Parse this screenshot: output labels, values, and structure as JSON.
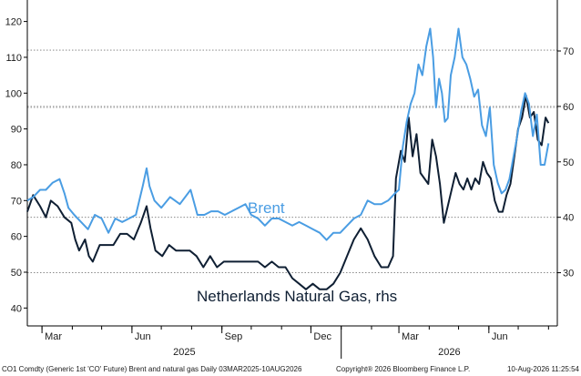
{
  "chart_data": {
    "type": "line",
    "title": "",
    "colors": {
      "brent": "#4a9de3",
      "gas": "#0f1f33",
      "grid": "#7a7a7a",
      "axis": "#000000"
    },
    "x_ticks": [
      "Mar",
      "Jun",
      "Sep",
      "Dec",
      "Mar",
      "Jun"
    ],
    "x_tick_dates": [
      "2025-03-01",
      "2025-06-01",
      "2025-09-01",
      "2025-12-01",
      "2026-03-01",
      "2026-06-01"
    ],
    "years": [
      "2025",
      "2026"
    ],
    "x_range": [
      "2025-02-14",
      "2026-08-10"
    ],
    "y_left": {
      "ticks": [
        40,
        50,
        60,
        70,
        80,
        90,
        100,
        110,
        120
      ],
      "range": [
        35,
        126
      ]
    },
    "y_right": {
      "ticks": [
        30,
        40,
        50,
        60,
        70
      ],
      "range": [
        20.4,
        79.2
      ]
    },
    "grid": [
      {
        "axis": "left",
        "value": 112
      },
      {
        "axis": "left",
        "value": 96
      },
      {
        "axis": "right",
        "value": 60
      },
      {
        "axis": "right",
        "value": 40
      },
      {
        "axis": "right",
        "value": 30
      }
    ],
    "series": [
      {
        "name": "Brent",
        "axis": "left",
        "points": [
          [
            "2025-02-14",
            70
          ],
          [
            "2025-02-20",
            71
          ],
          [
            "2025-02-27",
            73
          ],
          [
            "2025-03-05",
            73
          ],
          [
            "2025-03-12",
            75
          ],
          [
            "2025-03-19",
            76
          ],
          [
            "2025-03-24",
            72
          ],
          [
            "2025-03-28",
            68
          ],
          [
            "2025-04-03",
            66
          ],
          [
            "2025-04-10",
            64
          ],
          [
            "2025-04-17",
            62
          ],
          [
            "2025-04-24",
            66
          ],
          [
            "2025-05-01",
            65
          ],
          [
            "2025-05-08",
            61
          ],
          [
            "2025-05-15",
            65
          ],
          [
            "2025-05-22",
            64
          ],
          [
            "2025-05-29",
            65
          ],
          [
            "2025-06-05",
            66
          ],
          [
            "2025-06-12",
            74
          ],
          [
            "2025-06-16",
            79
          ],
          [
            "2025-06-19",
            74
          ],
          [
            "2025-06-24",
            70
          ],
          [
            "2025-07-01",
            68
          ],
          [
            "2025-07-10",
            71
          ],
          [
            "2025-07-20",
            69
          ],
          [
            "2025-07-31",
            73
          ],
          [
            "2025-08-07",
            66
          ],
          [
            "2025-08-14",
            66
          ],
          [
            "2025-08-21",
            67
          ],
          [
            "2025-08-28",
            67
          ],
          [
            "2025-09-04",
            66
          ],
          [
            "2025-09-11",
            67
          ],
          [
            "2025-09-18",
            68
          ],
          [
            "2025-09-25",
            69
          ],
          [
            "2025-10-01",
            66
          ],
          [
            "2025-10-08",
            65
          ],
          [
            "2025-10-15",
            63
          ],
          [
            "2025-10-22",
            65
          ],
          [
            "2025-10-29",
            65
          ],
          [
            "2025-11-05",
            64
          ],
          [
            "2025-11-12",
            63
          ],
          [
            "2025-11-19",
            64
          ],
          [
            "2025-11-26",
            63
          ],
          [
            "2025-12-03",
            62
          ],
          [
            "2025-12-10",
            61
          ],
          [
            "2025-12-17",
            59
          ],
          [
            "2025-12-24",
            61
          ],
          [
            "2025-12-31",
            61
          ],
          [
            "2026-01-07",
            63
          ],
          [
            "2026-01-14",
            65
          ],
          [
            "2026-01-21",
            66
          ],
          [
            "2026-01-28",
            70
          ],
          [
            "2026-02-04",
            69
          ],
          [
            "2026-02-11",
            69
          ],
          [
            "2026-02-18",
            70
          ],
          [
            "2026-02-25",
            72
          ],
          [
            "2026-03-01",
            73
          ],
          [
            "2026-03-05",
            85
          ],
          [
            "2026-03-09",
            92
          ],
          [
            "2026-03-13",
            97
          ],
          [
            "2026-03-17",
            100
          ],
          [
            "2026-03-21",
            108
          ],
          [
            "2026-03-25",
            105
          ],
          [
            "2026-03-29",
            113
          ],
          [
            "2026-04-02",
            118
          ],
          [
            "2026-04-05",
            110
          ],
          [
            "2026-04-08",
            96
          ],
          [
            "2026-04-11",
            104
          ],
          [
            "2026-04-14",
            100
          ],
          [
            "2026-04-17",
            92
          ],
          [
            "2026-04-20",
            93
          ],
          [
            "2026-04-23",
            105
          ],
          [
            "2026-04-27",
            110
          ],
          [
            "2026-05-01",
            118
          ],
          [
            "2026-05-05",
            110
          ],
          [
            "2026-05-09",
            108
          ],
          [
            "2026-05-13",
            104
          ],
          [
            "2026-05-17",
            99
          ],
          [
            "2026-05-21",
            101
          ],
          [
            "2026-05-25",
            91
          ],
          [
            "2026-05-29",
            88
          ],
          [
            "2026-06-02",
            96
          ],
          [
            "2026-06-06",
            80
          ],
          [
            "2026-06-10",
            75
          ],
          [
            "2026-06-14",
            72
          ],
          [
            "2026-06-18",
            73
          ],
          [
            "2026-06-22",
            76
          ],
          [
            "2026-06-26",
            82
          ],
          [
            "2026-06-30",
            88
          ],
          [
            "2026-07-04",
            95
          ],
          [
            "2026-07-08",
            100
          ],
          [
            "2026-07-12",
            97
          ],
          [
            "2026-07-16",
            88
          ],
          [
            "2026-07-20",
            94
          ],
          [
            "2026-07-24",
            80
          ],
          [
            "2026-07-28",
            80
          ],
          [
            "2026-08-01",
            86
          ]
        ]
      },
      {
        "name": "Netherlands Natural Gas, rhs",
        "axis": "right",
        "points": [
          [
            "2025-02-14",
            41
          ],
          [
            "2025-02-20",
            44
          ],
          [
            "2025-02-27",
            42
          ],
          [
            "2025-03-05",
            40
          ],
          [
            "2025-03-10",
            43
          ],
          [
            "2025-03-17",
            42
          ],
          [
            "2025-03-24",
            40
          ],
          [
            "2025-03-31",
            39
          ],
          [
            "2025-04-04",
            36
          ],
          [
            "2025-04-08",
            34
          ],
          [
            "2025-04-14",
            36
          ],
          [
            "2025-04-18",
            33
          ],
          [
            "2025-04-22",
            32
          ],
          [
            "2025-04-29",
            35
          ],
          [
            "2025-05-06",
            35
          ],
          [
            "2025-05-13",
            35
          ],
          [
            "2025-05-20",
            37
          ],
          [
            "2025-05-27",
            37
          ],
          [
            "2025-06-03",
            36
          ],
          [
            "2025-06-10",
            39
          ],
          [
            "2025-06-16",
            42
          ],
          [
            "2025-06-20",
            38
          ],
          [
            "2025-06-25",
            34
          ],
          [
            "2025-07-02",
            33
          ],
          [
            "2025-07-09",
            35
          ],
          [
            "2025-07-16",
            34
          ],
          [
            "2025-07-23",
            34
          ],
          [
            "2025-07-30",
            34
          ],
          [
            "2025-08-06",
            33
          ],
          [
            "2025-08-13",
            31
          ],
          [
            "2025-08-20",
            33
          ],
          [
            "2025-08-27",
            31
          ],
          [
            "2025-09-03",
            32
          ],
          [
            "2025-09-10",
            32
          ],
          [
            "2025-09-17",
            32
          ],
          [
            "2025-09-24",
            32
          ],
          [
            "2025-10-01",
            32
          ],
          [
            "2025-10-08",
            32
          ],
          [
            "2025-10-15",
            31
          ],
          [
            "2025-10-22",
            32
          ],
          [
            "2025-10-29",
            31
          ],
          [
            "2025-11-05",
            31
          ],
          [
            "2025-11-12",
            29
          ],
          [
            "2025-11-19",
            28
          ],
          [
            "2025-11-26",
            27
          ],
          [
            "2025-12-03",
            28
          ],
          [
            "2025-12-10",
            27
          ],
          [
            "2025-12-17",
            27
          ],
          [
            "2025-12-24",
            28
          ],
          [
            "2025-12-31",
            30
          ],
          [
            "2026-01-07",
            33
          ],
          [
            "2026-01-14",
            36
          ],
          [
            "2026-01-21",
            38
          ],
          [
            "2026-01-28",
            36
          ],
          [
            "2026-02-04",
            33
          ],
          [
            "2026-02-11",
            31
          ],
          [
            "2026-02-18",
            31
          ],
          [
            "2026-02-23",
            33
          ],
          [
            "2026-02-26",
            47
          ],
          [
            "2026-03-03",
            52
          ],
          [
            "2026-03-07",
            50
          ],
          [
            "2026-03-11",
            58
          ],
          [
            "2026-03-15",
            51
          ],
          [
            "2026-03-19",
            55
          ],
          [
            "2026-03-23",
            48
          ],
          [
            "2026-03-27",
            47
          ],
          [
            "2026-03-31",
            46
          ],
          [
            "2026-04-04",
            54
          ],
          [
            "2026-04-08",
            51
          ],
          [
            "2026-04-12",
            46
          ],
          [
            "2026-04-16",
            39
          ],
          [
            "2026-04-20",
            42
          ],
          [
            "2026-04-24",
            45
          ],
          [
            "2026-04-28",
            48
          ],
          [
            "2026-05-02",
            46
          ],
          [
            "2026-05-06",
            45
          ],
          [
            "2026-05-10",
            47
          ],
          [
            "2026-05-14",
            45
          ],
          [
            "2026-05-18",
            47
          ],
          [
            "2026-05-22",
            46
          ],
          [
            "2026-05-26",
            50
          ],
          [
            "2026-05-30",
            48
          ],
          [
            "2026-06-03",
            47
          ],
          [
            "2026-06-07",
            43
          ],
          [
            "2026-06-11",
            41
          ],
          [
            "2026-06-15",
            41
          ],
          [
            "2026-06-19",
            44
          ],
          [
            "2026-06-23",
            46
          ],
          [
            "2026-06-27",
            51
          ],
          [
            "2026-07-01",
            56
          ],
          [
            "2026-07-05",
            58
          ],
          [
            "2026-07-09",
            62
          ],
          [
            "2026-07-13",
            58
          ],
          [
            "2026-07-17",
            59
          ],
          [
            "2026-07-21",
            54
          ],
          [
            "2026-07-25",
            53
          ],
          [
            "2026-07-29",
            58
          ],
          [
            "2026-08-01",
            57
          ]
        ]
      }
    ],
    "footer": {
      "left": "CO1 Comdty (Generic 1st 'CO' Future) Brent and natural gas Daily 03MAR2025-10AUG2026",
      "middle": "Copyright® 2026 Bloomberg Finance L.P.",
      "right": "10-Aug-2026 11:25:54"
    }
  }
}
